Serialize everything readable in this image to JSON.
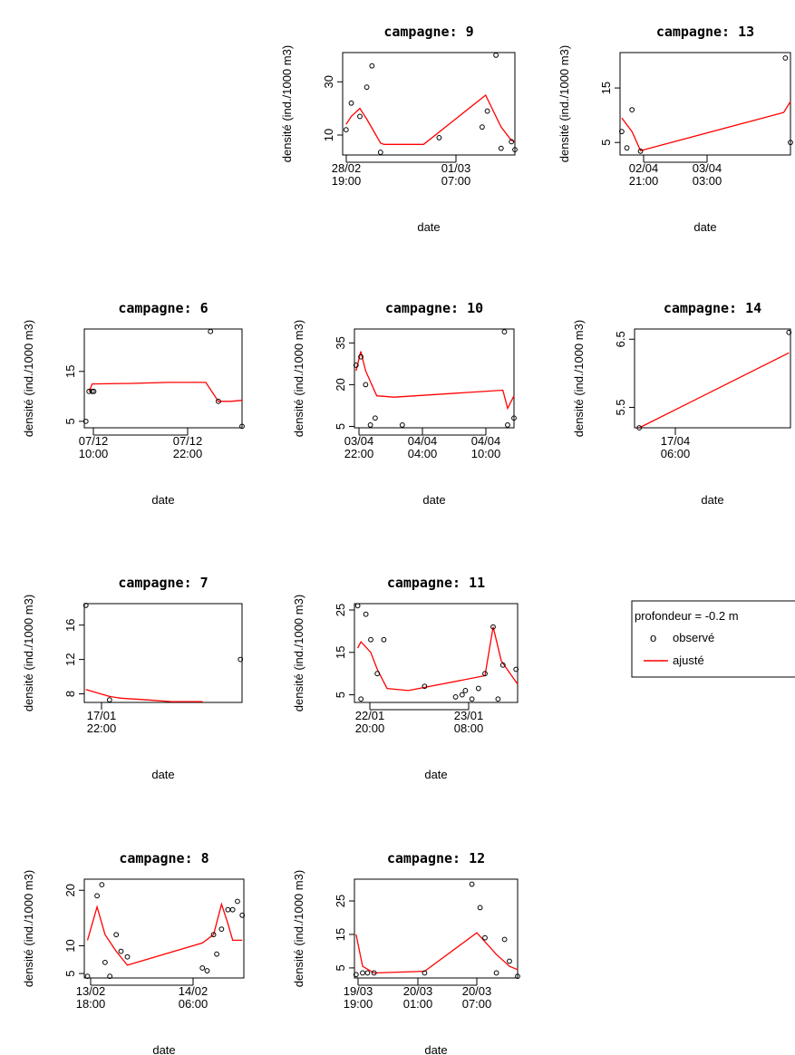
{
  "chart_data": [
    {
      "panel": "9",
      "type": "scatter+line",
      "title": "campagne:  9",
      "xlabel": "date",
      "ylabel": "densité (ind./1000 m3)",
      "xlim": [
        0,
        1
      ],
      "ylim": [
        2.5,
        41
      ],
      "yticks": [
        10,
        30
      ],
      "xticks": [
        {
          "at": 0.04,
          "l1": "28/02",
          "l2": "19:00"
        },
        {
          "at": 0.69,
          "l1": "01/03",
          "l2": "07:00"
        }
      ],
      "points": [
        [
          0.02,
          12
        ],
        [
          0.05,
          22
        ],
        [
          0.1,
          17
        ],
        [
          0.14,
          28
        ],
        [
          0.17,
          36
        ],
        [
          0.22,
          3.5
        ],
        [
          0.56,
          9
        ],
        [
          0.81,
          13
        ],
        [
          0.84,
          19
        ],
        [
          0.89,
          40
        ],
        [
          0.92,
          5
        ],
        [
          0.98,
          7.5
        ],
        [
          1.0,
          4.5
        ]
      ],
      "fit": [
        [
          0.02,
          14
        ],
        [
          0.05,
          17
        ],
        [
          0.1,
          20
        ],
        [
          0.14,
          16
        ],
        [
          0.22,
          7
        ],
        [
          0.24,
          6.5
        ],
        [
          0.47,
          6.5
        ],
        [
          0.83,
          25
        ],
        [
          0.92,
          13
        ],
        [
          0.98,
          8
        ],
        [
          1.0,
          7.5
        ]
      ]
    },
    {
      "panel": "13",
      "type": "scatter+line",
      "title": "campagne:  13",
      "xlabel": "date",
      "ylabel": "densité (ind./1000 m3)",
      "xlim": [
        0,
        1
      ],
      "ylim": [
        2.7,
        21.5
      ],
      "yticks": [
        5,
        15
      ],
      "xticks": [
        {
          "at": 0.07,
          "l1": "02/04",
          "l2": "21:00"
        },
        {
          "at": 0.47,
          "l1": "03/04",
          "l2": "03:00"
        }
      ],
      "points": [
        [
          0.01,
          7
        ],
        [
          0.04,
          4
        ],
        [
          0.07,
          11
        ],
        [
          0.12,
          3.4
        ],
        [
          0.97,
          20.5
        ],
        [
          1.0,
          5
        ]
      ],
      "fit": [
        [
          0.01,
          9.5
        ],
        [
          0.07,
          7
        ],
        [
          0.12,
          3.5
        ],
        [
          0.96,
          10.5
        ],
        [
          1.0,
          12.5
        ]
      ]
    },
    {
      "panel": "6",
      "type": "scatter+line",
      "title": "campagne:  6",
      "xlabel": "date",
      "ylabel": "densité (ind./1000 m3)",
      "xlim": [
        0,
        1
      ],
      "ylim": [
        3.7,
        23.5
      ],
      "yticks": [
        5,
        15
      ],
      "xticks": [
        {
          "at": 0.05,
          "l1": "07/12",
          "l2": "10:00"
        },
        {
          "at": 0.54,
          "l1": "07/12",
          "l2": "22:00"
        }
      ],
      "points": [
        [
          0.01,
          5
        ],
        [
          0.03,
          11
        ],
        [
          0.05,
          11
        ],
        [
          0.06,
          11
        ],
        [
          0.8,
          23
        ],
        [
          0.85,
          9
        ],
        [
          1.0,
          4
        ]
      ],
      "fit": [
        [
          0.03,
          11
        ],
        [
          0.05,
          12.5
        ],
        [
          0.3,
          12.6
        ],
        [
          0.54,
          12.8
        ],
        [
          0.77,
          12.8
        ],
        [
          0.85,
          9
        ],
        [
          0.93,
          9
        ],
        [
          1.0,
          9.2
        ]
      ]
    },
    {
      "panel": "10",
      "type": "scatter+line",
      "title": "campagne:  10",
      "xlabel": "date",
      "ylabel": "densité (ind./1000 m3)",
      "xlim": [
        0,
        1
      ],
      "ylim": [
        4.5,
        40
      ],
      "yticks": [
        5,
        20,
        35
      ],
      "xticks": [
        {
          "at": 0.03,
          "l1": "03/04",
          "l2": "22:00"
        },
        {
          "at": 0.43,
          "l1": "04/04",
          "l2": "04:00"
        },
        {
          "at": 0.83,
          "l1": "04/04",
          "l2": "10:00"
        }
      ],
      "points": [
        [
          0.01,
          27
        ],
        [
          0.04,
          30
        ],
        [
          0.07,
          20
        ],
        [
          0.1,
          5.5
        ],
        [
          0.13,
          8
        ],
        [
          0.3,
          5.5
        ],
        [
          0.94,
          39
        ],
        [
          0.96,
          5.5
        ],
        [
          1.0,
          8
        ]
      ],
      "fit": [
        [
          0.01,
          25
        ],
        [
          0.04,
          32
        ],
        [
          0.07,
          25
        ],
        [
          0.14,
          16
        ],
        [
          0.25,
          15.5
        ],
        [
          0.93,
          18
        ],
        [
          0.96,
          11.5
        ],
        [
          1.0,
          16
        ]
      ]
    },
    {
      "panel": "14",
      "type": "scatter+line",
      "title": "campagne:  14",
      "xlabel": "date",
      "ylabel": "densité (ind./1000 m3)",
      "xlim": [
        0,
        1
      ],
      "ylim": [
        5.2,
        6.65
      ],
      "yticks": [
        5.5,
        6.5
      ],
      "xticks": [
        {
          "at": 0.27,
          "l1": "17/04",
          "l2": "06:00"
        }
      ],
      "points": [
        [
          0.03,
          5.2
        ],
        [
          0.99,
          6.6
        ]
      ],
      "fit": [
        [
          0.03,
          5.2
        ],
        [
          0.99,
          6.3
        ]
      ]
    },
    {
      "panel": "7",
      "type": "scatter+line",
      "title": "campagne:  7",
      "xlabel": "date",
      "ylabel": "densité (ind./1000 m3)",
      "xlim": [
        0,
        1
      ],
      "ylim": [
        7,
        18.5
      ],
      "yticks": [
        8,
        12,
        16
      ],
      "xticks": [
        {
          "at": 0.1,
          "l1": "17/01",
          "l2": "22:00"
        }
      ],
      "points": [
        [
          0.01,
          18.3
        ],
        [
          0.16,
          7.3
        ],
        [
          0.99,
          12
        ]
      ],
      "fit": [
        [
          0.01,
          8.5
        ],
        [
          0.16,
          7.7
        ],
        [
          0.23,
          7.5
        ],
        [
          0.4,
          7.3
        ],
        [
          0.55,
          7.1
        ],
        [
          0.75,
          7.1
        ]
      ]
    },
    {
      "panel": "11",
      "type": "scatter+line",
      "title": "campagne:  11",
      "xlabel": "date",
      "ylabel": "densité (ind./1000 m3)",
      "xlim": [
        0,
        1
      ],
      "ylim": [
        3.2,
        26.5
      ],
      "yticks": [
        5,
        15,
        25
      ],
      "xticks": [
        {
          "at": 0.1,
          "l1": "22/01",
          "l2": "20:00"
        },
        {
          "at": 0.69,
          "l1": "23/01",
          "l2": "08:00"
        }
      ],
      "points": [
        [
          0.02,
          26
        ],
        [
          0.04,
          4
        ],
        [
          0.07,
          24
        ],
        [
          0.1,
          18
        ],
        [
          0.14,
          10
        ],
        [
          0.18,
          18
        ],
        [
          0.43,
          7
        ],
        [
          0.62,
          4.5
        ],
        [
          0.66,
          5
        ],
        [
          0.68,
          6
        ],
        [
          0.72,
          4
        ],
        [
          0.76,
          6.5
        ],
        [
          0.8,
          10
        ],
        [
          0.85,
          21
        ],
        [
          0.88,
          4
        ],
        [
          0.91,
          12
        ],
        [
          0.99,
          11
        ]
      ],
      "fit": [
        [
          0.02,
          16
        ],
        [
          0.04,
          17.5
        ],
        [
          0.1,
          15
        ],
        [
          0.14,
          11
        ],
        [
          0.2,
          6.5
        ],
        [
          0.33,
          6
        ],
        [
          0.8,
          9.5
        ],
        [
          0.85,
          21
        ],
        [
          0.9,
          13
        ],
        [
          1.0,
          7.5
        ]
      ]
    },
    {
      "panel": "8",
      "type": "scatter+line",
      "title": "campagne:  8",
      "xlabel": "date",
      "ylabel": "densité (ind./1000 m3)",
      "xlim": [
        0,
        1
      ],
      "ylim": [
        4.2,
        22
      ],
      "yticks": [
        5,
        10,
        20
      ],
      "xticks": [
        {
          "at": 0.04,
          "l1": "13/02",
          "l2": "18:00"
        },
        {
          "at": 0.7,
          "l1": "14/02",
          "l2": "06:00"
        }
      ],
      "points": [
        [
          0.02,
          4.5
        ],
        [
          0.08,
          19
        ],
        [
          0.11,
          21
        ],
        [
          0.13,
          7
        ],
        [
          0.16,
          4.5
        ],
        [
          0.2,
          12
        ],
        [
          0.23,
          9
        ],
        [
          0.27,
          8
        ],
        [
          0.74,
          6
        ],
        [
          0.77,
          5.5
        ],
        [
          0.81,
          12
        ],
        [
          0.83,
          8.5
        ],
        [
          0.86,
          13
        ],
        [
          0.9,
          16.5
        ],
        [
          0.93,
          16.5
        ],
        [
          0.96,
          18
        ],
        [
          0.99,
          15.5
        ]
      ],
      "fit": [
        [
          0.02,
          11
        ],
        [
          0.08,
          17
        ],
        [
          0.13,
          12
        ],
        [
          0.2,
          9
        ],
        [
          0.27,
          6.5
        ],
        [
          0.74,
          10.5
        ],
        [
          0.81,
          12
        ],
        [
          0.86,
          17.5
        ],
        [
          0.9,
          14
        ],
        [
          0.93,
          11
        ],
        [
          0.99,
          11
        ]
      ]
    },
    {
      "panel": "12",
      "type": "scatter+line",
      "title": "campagne:  12",
      "xlabel": "date",
      "ylabel": "densité (ind./1000 m3)",
      "xlim": [
        0,
        1
      ],
      "ylim": [
        2,
        31.5
      ],
      "yticks": [
        5,
        15,
        25
      ],
      "xticks": [
        {
          "at": 0.05,
          "l1": "19/03",
          "l2": "19:00"
        },
        {
          "at": 0.38,
          "l1": "20/03",
          "l2": "01:00"
        },
        {
          "at": 0.72,
          "l1": "20/03",
          "l2": "07:00"
        }
      ],
      "points": [
        [
          0.01,
          3
        ],
        [
          0.05,
          3.5
        ],
        [
          0.08,
          3.5
        ],
        [
          0.12,
          3.5
        ],
        [
          0.43,
          3.5
        ],
        [
          0.72,
          30
        ],
        [
          0.77,
          23
        ],
        [
          0.8,
          14
        ],
        [
          0.87,
          3.5
        ],
        [
          0.92,
          13.5
        ],
        [
          0.95,
          7
        ],
        [
          1.0,
          2.5
        ]
      ],
      "fit": [
        [
          0.01,
          15
        ],
        [
          0.05,
          5.5
        ],
        [
          0.12,
          3.5
        ],
        [
          0.43,
          4
        ],
        [
          0.75,
          15.5
        ],
        [
          0.87,
          9
        ],
        [
          0.95,
          5.5
        ],
        [
          1.0,
          4.5
        ]
      ]
    }
  ],
  "legend": {
    "title": "profondeur = -0.2 m",
    "observed": "observé",
    "fitted": "ajusté",
    "obs_symbol": "o"
  },
  "colors": {
    "fit_line": "#ff0000",
    "points": "#000000",
    "axes": "#000000"
  }
}
